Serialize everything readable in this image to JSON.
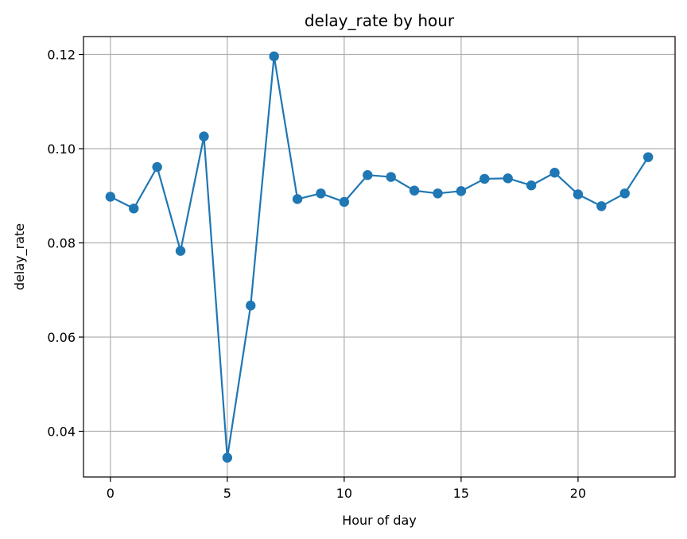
{
  "chart_data": {
    "type": "line",
    "title": "delay_rate by hour",
    "xlabel": "Hour of day",
    "ylabel": "delay_rate",
    "xlim": [
      -1.15,
      24.15
    ],
    "ylim": [
      0.0303,
      0.1238
    ],
    "xticks": [
      0,
      5,
      10,
      15,
      20
    ],
    "yticks": [
      0.04,
      0.06,
      0.08,
      0.1,
      0.12
    ],
    "ytick_labels": [
      "0.04",
      "0.06",
      "0.08",
      "0.10",
      "0.12"
    ],
    "grid": true,
    "marker": "circle",
    "series": [
      {
        "color": "#1f77b4",
        "x": [
          0,
          1,
          2,
          3,
          4,
          5,
          6,
          7,
          8,
          9,
          10,
          11,
          12,
          13,
          14,
          15,
          16,
          17,
          18,
          19,
          20,
          21,
          22,
          23
        ],
        "y": [
          0.0898,
          0.0873,
          0.0961,
          0.0783,
          0.1026,
          0.0344,
          0.0667,
          0.1196,
          0.0893,
          0.0905,
          0.0887,
          0.0944,
          0.094,
          0.0911,
          0.0905,
          0.091,
          0.0936,
          0.0937,
          0.0922,
          0.0949,
          0.0903,
          0.0878,
          0.0905,
          0.0982
        ]
      }
    ]
  }
}
